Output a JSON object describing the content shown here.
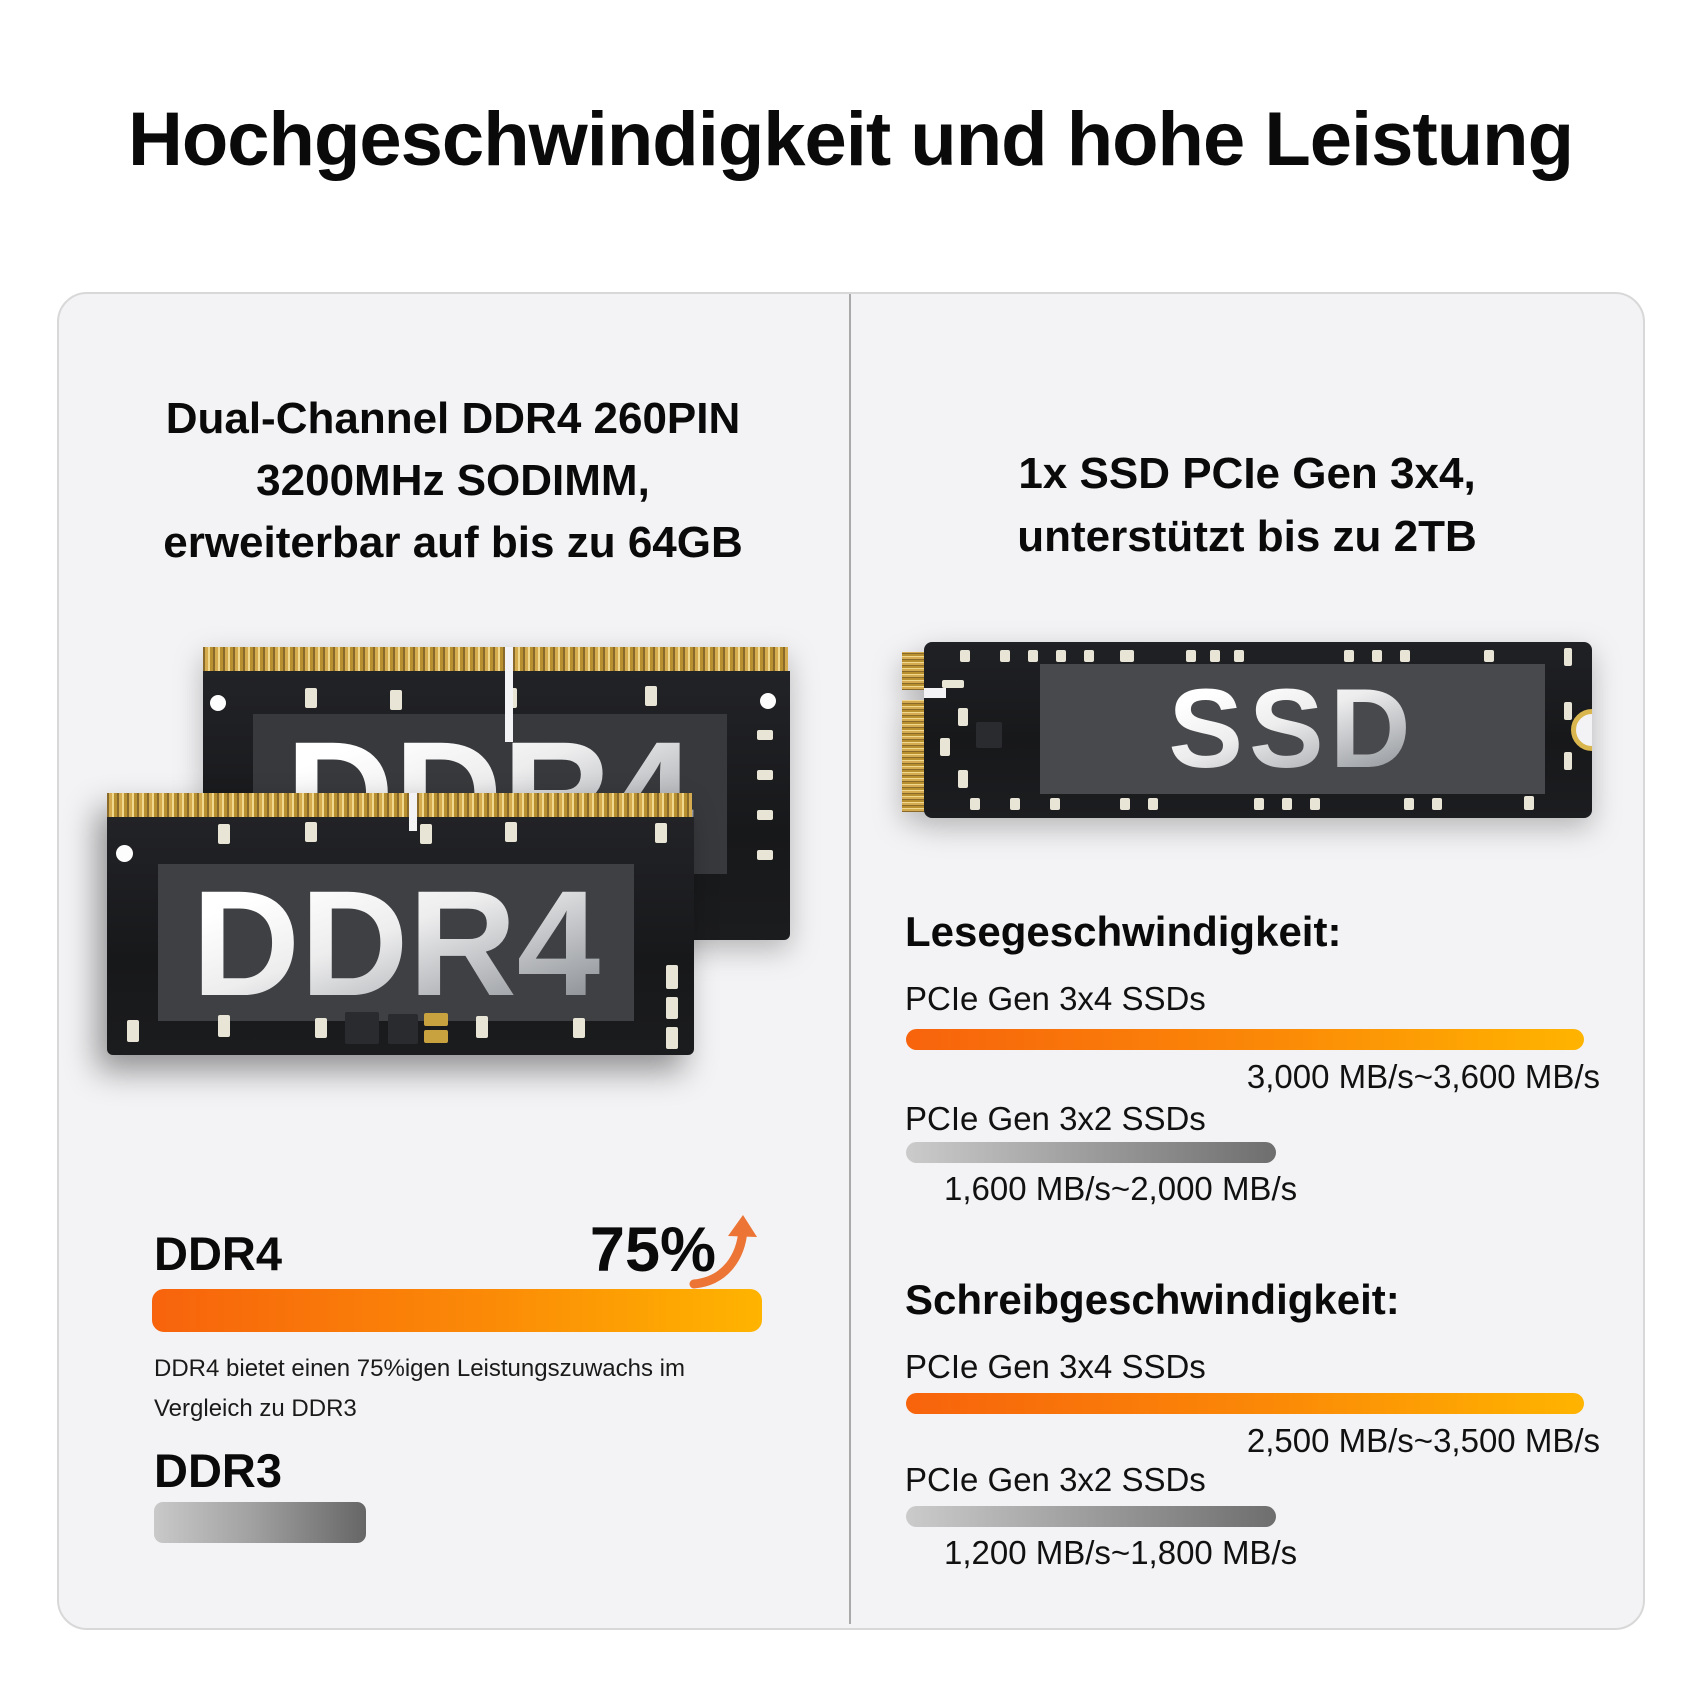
{
  "title": "Hochgeschwindigkeit und hohe Leistung",
  "ram_panel": {
    "heading_lines": [
      "Dual-Channel DDR4 260PIN",
      "3200MHz SODIMM,",
      "erweiterbar auf bis zu 64GB"
    ],
    "module_label": "DDR4",
    "comparison": {
      "ddr4_label": "DDR4",
      "ddr4_gain": "75%",
      "caption": "DDR4 bietet einen 75%igen Leistungszuwachs im Vergleich zu DDR3",
      "ddr3_label": "DDR3"
    }
  },
  "ssd_panel": {
    "heading_lines": [
      "1x SSD PCIe Gen 3x4,",
      "unterstützt bis zu 2TB"
    ],
    "module_label": "SSD",
    "read": {
      "heading": "Lesegeschwindigkeit:",
      "fast_label": "PCIe Gen 3x4 SSDs",
      "fast_value": "3,000 MB/s~3,600 MB/s",
      "slow_label": "PCIe Gen 3x2 SSDs",
      "slow_value": "1,600 MB/s~2,000 MB/s"
    },
    "write": {
      "heading": "Schreibgeschwindigkeit:",
      "fast_label": "PCIe Gen 3x4 SSDs",
      "fast_value": "2,500 MB/s~3,500 MB/s",
      "slow_label": "PCIe Gen 3x2 SSDs",
      "slow_value": "1,200 MB/s~1,800 MB/s"
    }
  },
  "colors": {
    "accent_orange_start": "#f7630c",
    "accent_orange_end": "#ffb400",
    "gray_bar_start": "#c9c9c9",
    "gray_bar_end": "#666666",
    "gold": "#d9b64e",
    "card_background": "#f3f3f5"
  },
  "chart_data": [
    {
      "type": "bar",
      "title": "RAM-Leistungsvergleich DDR4 vs DDR3",
      "categories": [
        "DDR4",
        "DDR3"
      ],
      "values": [
        100,
        35
      ],
      "unit": "relative Balkenlänge %",
      "annotations": [
        "DDR4 +75% gegenüber DDR3",
        "DDR4 bietet einen 75%igen Leistungszuwachs im Vergleich zu DDR3"
      ],
      "legend_position": "none",
      "grid": false
    },
    {
      "type": "bar",
      "title": "Lesegeschwindigkeit",
      "categories": [
        "PCIe Gen 3x4 SSDs",
        "PCIe Gen 3x2 SSDs"
      ],
      "series": [
        {
          "name": "min",
          "values": [
            3000,
            1600
          ]
        },
        {
          "name": "max",
          "values": [
            3600,
            2000
          ]
        }
      ],
      "ylabel": "MB/s",
      "grid": false
    },
    {
      "type": "bar",
      "title": "Schreibgeschwindigkeit",
      "categories": [
        "PCIe Gen 3x4 SSDs",
        "PCIe Gen 3x2 SSDs"
      ],
      "series": [
        {
          "name": "min",
          "values": [
            2500,
            1200
          ]
        },
        {
          "name": "max",
          "values": [
            3500,
            1800
          ]
        }
      ],
      "ylabel": "MB/s",
      "grid": false
    }
  ]
}
